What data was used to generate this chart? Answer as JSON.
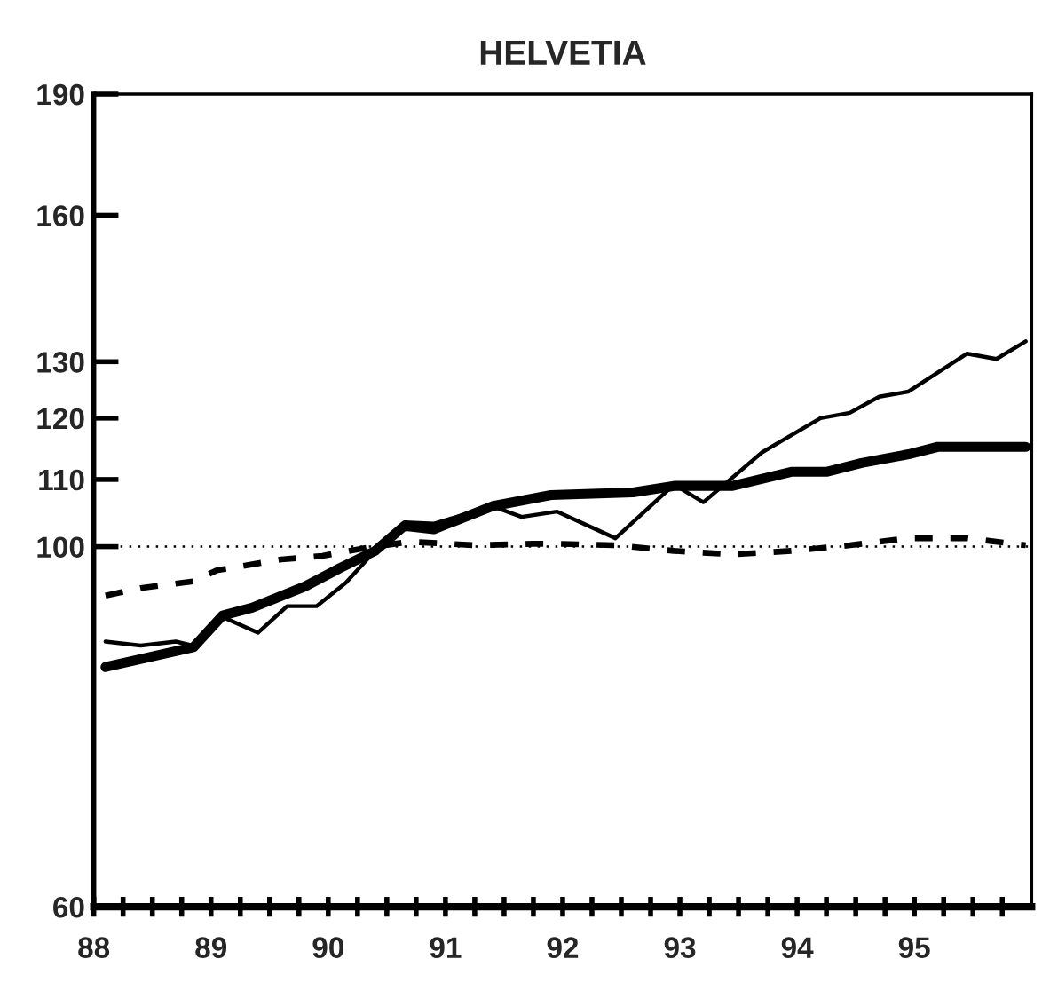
{
  "chart_data": {
    "type": "line",
    "title": "HELVETIA",
    "log": true,
    "grid": false,
    "legend": false,
    "marker": "none",
    "xlim": [
      88,
      96
    ],
    "ylim": [
      60,
      190
    ],
    "xticks": [
      {
        "value": 88,
        "label": "88"
      },
      {
        "value": 88.25,
        "label": null
      },
      {
        "value": 88.5,
        "label": null
      },
      {
        "value": 88.75,
        "label": null
      },
      {
        "value": 89,
        "label": "89"
      },
      {
        "value": 89.25,
        "label": null
      },
      {
        "value": 89.5,
        "label": null
      },
      {
        "value": 89.75,
        "label": null
      },
      {
        "value": 90,
        "label": "90"
      },
      {
        "value": 90.25,
        "label": null
      },
      {
        "value": 90.5,
        "label": null
      },
      {
        "value": 90.75,
        "label": null
      },
      {
        "value": 91,
        "label": "91"
      },
      {
        "value": 91.25,
        "label": null
      },
      {
        "value": 91.5,
        "label": null
      },
      {
        "value": 91.75,
        "label": null
      },
      {
        "value": 92,
        "label": "92"
      },
      {
        "value": 92.25,
        "label": null
      },
      {
        "value": 92.5,
        "label": null
      },
      {
        "value": 92.75,
        "label": null
      },
      {
        "value": 93,
        "label": "93"
      },
      {
        "value": 93.25,
        "label": null
      },
      {
        "value": 93.5,
        "label": null
      },
      {
        "value": 93.75,
        "label": null
      },
      {
        "value": 94,
        "label": "94"
      },
      {
        "value": 94.25,
        "label": null
      },
      {
        "value": 94.5,
        "label": null
      },
      {
        "value": 94.75,
        "label": null
      },
      {
        "value": 95,
        "label": "95"
      },
      {
        "value": 95.25,
        "label": null
      },
      {
        "value": 95.5,
        "label": null
      },
      {
        "value": 95.75,
        "label": null
      }
    ],
    "yticks": [
      60,
      100,
      110,
      120,
      130,
      160,
      190
    ],
    "ref_lines": [
      {
        "axis": "y",
        "value": 100,
        "color": "#000000",
        "line_style": "dotted"
      }
    ],
    "series": [
      {
        "color": "#000000",
        "line_style": "solid",
        "x": [
          88.1,
          88.85,
          89.1,
          89.35,
          89.8,
          90.1,
          90.4,
          90.65,
          90.9,
          91.4,
          91.9,
          92.6,
          92.95,
          93.45,
          93.95,
          94.25,
          94.55,
          94.95,
          95.2,
          95.95
        ],
        "values": [
          84.3,
          86.7,
          90.7,
          91.7,
          94.5,
          97.0,
          99.4,
          103.0,
          102.5,
          105.9,
          107.6,
          108.0,
          109.0,
          109.0,
          111.2,
          111.2,
          112.6,
          114.0,
          115.2,
          115.2
        ]
      },
      {
        "color": "#000000",
        "line_style": "solid",
        "x": [
          88.1,
          88.4,
          88.7,
          88.85,
          89.1,
          89.4,
          89.65,
          89.9,
          90.15,
          90.4,
          90.65,
          90.9,
          91.4,
          91.65,
          91.95,
          92.45,
          92.95,
          93.2,
          93.7,
          94.2,
          94.45,
          94.7,
          94.95,
          95.45,
          95.7,
          95.95
        ],
        "values": [
          87.4,
          86.9,
          87.4,
          86.9,
          90.5,
          88.5,
          91.9,
          91.9,
          95.0,
          99.4,
          103.5,
          103.3,
          105.9,
          104.3,
          105.1,
          101.2,
          109.2,
          106.5,
          114.3,
          120.0,
          120.9,
          123.7,
          124.6,
          131.5,
          130.5,
          133.8
        ]
      },
      {
        "color": "#000000",
        "line_style": "dashed",
        "x": [
          88.1,
          88.4,
          88.85,
          89.05,
          89.6,
          89.95,
          90.35,
          90.7,
          91.25,
          91.75,
          91.95,
          92.45,
          92.95,
          93.45,
          93.95,
          94.45,
          94.95,
          95.45,
          95.95
        ],
        "values": [
          93.3,
          94.3,
          95.2,
          96.7,
          98.2,
          98.7,
          99.9,
          100.7,
          100.2,
          100.4,
          100.4,
          100.2,
          99.4,
          98.9,
          99.4,
          100.2,
          101.2,
          101.2,
          100.2
        ]
      }
    ]
  }
}
